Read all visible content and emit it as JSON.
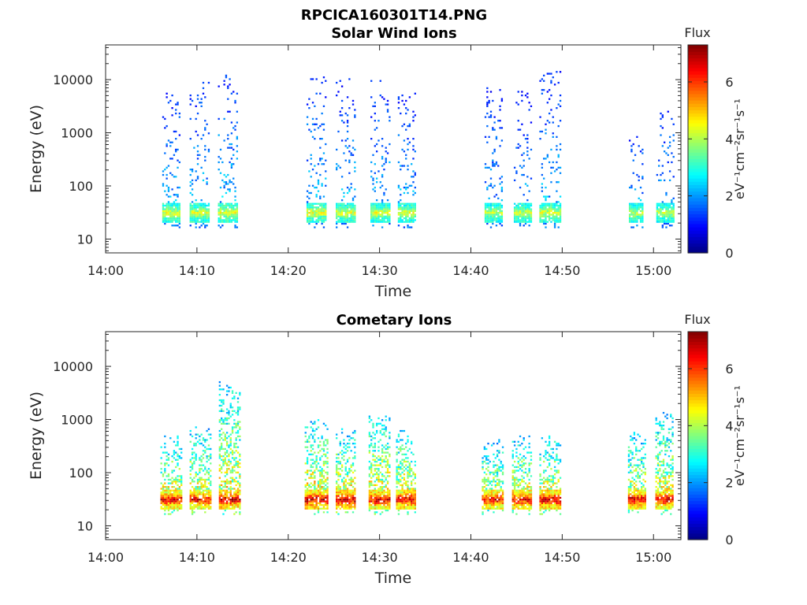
{
  "figure": {
    "title": "RPCICA160301T14.PNG"
  },
  "chart_data": [
    {
      "type": "heatmap",
      "title": "Solar Wind Ions",
      "xlabel": "Time",
      "ylabel": "Energy (eV)",
      "x_ticks": [
        "14:00",
        "14:10",
        "14:20",
        "14:30",
        "14:40",
        "14:50",
        "15:00"
      ],
      "x_range_minutes": [
        0,
        63
      ],
      "y_scale": "log",
      "y_ticks": [
        "10",
        "100",
        "1000",
        "10000"
      ],
      "y_range": [
        5.5,
        45000
      ],
      "colorbar": {
        "title": "Flux",
        "label": "eV⁻¹cm⁻²sr⁻¹s⁻¹",
        "ticks": [
          "0",
          "2",
          "4",
          "6"
        ],
        "range": [
          0,
          7.3
        ],
        "colormap": "jet"
      },
      "bursts": [
        {
          "start_min": 6.2,
          "end_min": 8.2,
          "core_flux": 4.2,
          "upper_flux": 1.6,
          "max_energy": 6000
        },
        {
          "start_min": 9.2,
          "end_min": 11.3,
          "core_flux": 4.2,
          "upper_flux": 1.6,
          "max_energy": 10000
        },
        {
          "start_min": 12.3,
          "end_min": 14.4,
          "core_flux": 4.3,
          "upper_flux": 1.7,
          "max_energy": 14000
        },
        {
          "start_min": 22.0,
          "end_min": 24.1,
          "core_flux": 4.3,
          "upper_flux": 1.6,
          "max_energy": 14000
        },
        {
          "start_min": 25.2,
          "end_min": 27.2,
          "core_flux": 4.2,
          "upper_flux": 1.6,
          "max_energy": 10000
        },
        {
          "start_min": 29.0,
          "end_min": 31.0,
          "core_flux": 4.2,
          "upper_flux": 1.6,
          "max_energy": 10000
        },
        {
          "start_min": 32.0,
          "end_min": 33.9,
          "core_flux": 4.2,
          "upper_flux": 1.6,
          "max_energy": 6000
        },
        {
          "start_min": 41.5,
          "end_min": 43.4,
          "core_flux": 4.0,
          "upper_flux": 1.5,
          "max_energy": 7000
        },
        {
          "start_min": 44.7,
          "end_min": 46.6,
          "core_flux": 4.1,
          "upper_flux": 1.5,
          "max_energy": 6000
        },
        {
          "start_min": 47.5,
          "end_min": 49.8,
          "core_flux": 4.2,
          "upper_flux": 1.6,
          "max_energy": 14000
        },
        {
          "start_min": 57.3,
          "end_min": 58.9,
          "core_flux": 4.0,
          "upper_flux": 1.6,
          "max_energy": 1000
        },
        {
          "start_min": 60.3,
          "end_min": 62.2,
          "core_flux": 4.0,
          "upper_flux": 1.6,
          "max_energy": 2500
        }
      ]
    },
    {
      "type": "heatmap",
      "title": "Cometary Ions",
      "xlabel": "Time",
      "ylabel": "Energy (eV)",
      "x_ticks": [
        "14:00",
        "14:10",
        "14:20",
        "14:30",
        "14:40",
        "14:50",
        "15:00"
      ],
      "x_range_minutes": [
        0,
        63
      ],
      "y_scale": "log",
      "y_ticks": [
        "10",
        "100",
        "1000",
        "10000"
      ],
      "y_range": [
        5.5,
        45000
      ],
      "colorbar": {
        "title": "Flux",
        "label": "eV⁻¹cm⁻²sr⁻¹s⁻¹",
        "ticks": [
          "0",
          "2",
          "4",
          "6"
        ],
        "range": [
          0,
          7.3
        ],
        "colormap": "jet"
      },
      "bursts": [
        {
          "start_min": 6.0,
          "end_min": 8.3,
          "core_flux": 6.4,
          "upper_flux": 3.2,
          "max_energy": 500
        },
        {
          "start_min": 9.2,
          "end_min": 11.4,
          "core_flux": 6.3,
          "upper_flux": 3.2,
          "max_energy": 700
        },
        {
          "start_min": 12.4,
          "end_min": 14.6,
          "core_flux": 6.6,
          "upper_flux": 3.3,
          "max_energy": 5500
        },
        {
          "start_min": 21.8,
          "end_min": 24.2,
          "core_flux": 6.7,
          "upper_flux": 3.4,
          "max_energy": 1000
        },
        {
          "start_min": 25.2,
          "end_min": 27.3,
          "core_flux": 6.6,
          "upper_flux": 3.3,
          "max_energy": 650
        },
        {
          "start_min": 28.8,
          "end_min": 31.0,
          "core_flux": 6.5,
          "upper_flux": 3.3,
          "max_energy": 1100
        },
        {
          "start_min": 31.8,
          "end_min": 34.0,
          "core_flux": 6.5,
          "upper_flux": 3.3,
          "max_energy": 650
        },
        {
          "start_min": 41.2,
          "end_min": 43.6,
          "core_flux": 6.3,
          "upper_flux": 3.0,
          "max_energy": 400
        },
        {
          "start_min": 44.5,
          "end_min": 46.7,
          "core_flux": 6.4,
          "upper_flux": 3.2,
          "max_energy": 500
        },
        {
          "start_min": 47.5,
          "end_min": 49.9,
          "core_flux": 6.6,
          "upper_flux": 3.2,
          "max_energy": 500
        },
        {
          "start_min": 57.2,
          "end_min": 59.1,
          "core_flux": 6.5,
          "upper_flux": 3.1,
          "max_energy": 550
        },
        {
          "start_min": 60.2,
          "end_min": 62.2,
          "core_flux": 6.4,
          "upper_flux": 3.2,
          "max_energy": 1300
        }
      ]
    }
  ]
}
